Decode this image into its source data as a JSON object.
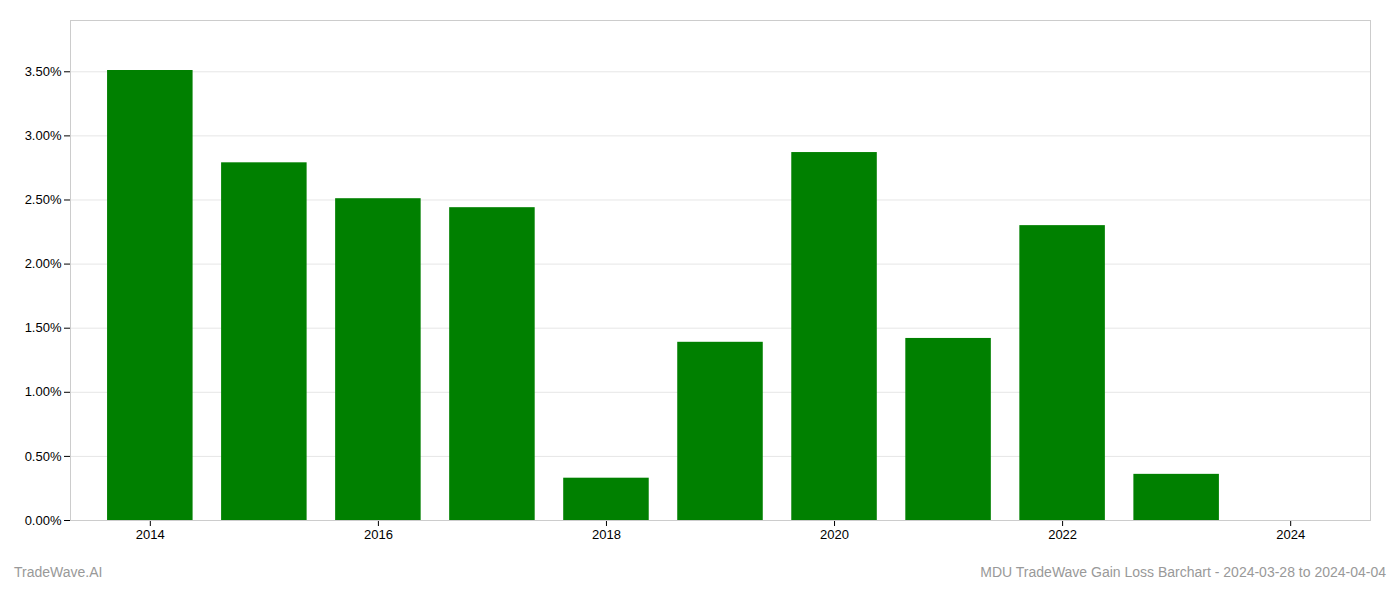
{
  "chart_data": {
    "type": "bar",
    "x": [
      2014,
      2015,
      2016,
      2017,
      2018,
      2019,
      2020,
      2021,
      2022,
      2023
    ],
    "values": [
      0.0351,
      0.0279,
      0.0251,
      0.0244,
      0.0033,
      0.0139,
      0.0287,
      0.0142,
      0.023,
      0.0036
    ],
    "color": "#008000",
    "xlim": [
      2013.3,
      2024.7
    ],
    "xticks": [
      2014,
      2016,
      2018,
      2020,
      2022,
      2024
    ],
    "ylim": [
      0,
      0.039
    ],
    "yticks": [
      {
        "value": 0.0,
        "label": "0.00%"
      },
      {
        "value": 0.005,
        "label": "0.50%"
      },
      {
        "value": 0.01,
        "label": "1.00%"
      },
      {
        "value": 0.015,
        "label": "1.50%"
      },
      {
        "value": 0.02,
        "label": "2.00%"
      },
      {
        "value": 0.025,
        "label": "2.50%"
      },
      {
        "value": 0.03,
        "label": "3.00%"
      },
      {
        "value": 0.035,
        "label": "3.50%"
      }
    ],
    "grid": true,
    "annotations": [
      "TradeWave.AI",
      "MDU TradeWave Gain Loss Barchart - 2024-03-28 to 2024-04-04"
    ]
  }
}
